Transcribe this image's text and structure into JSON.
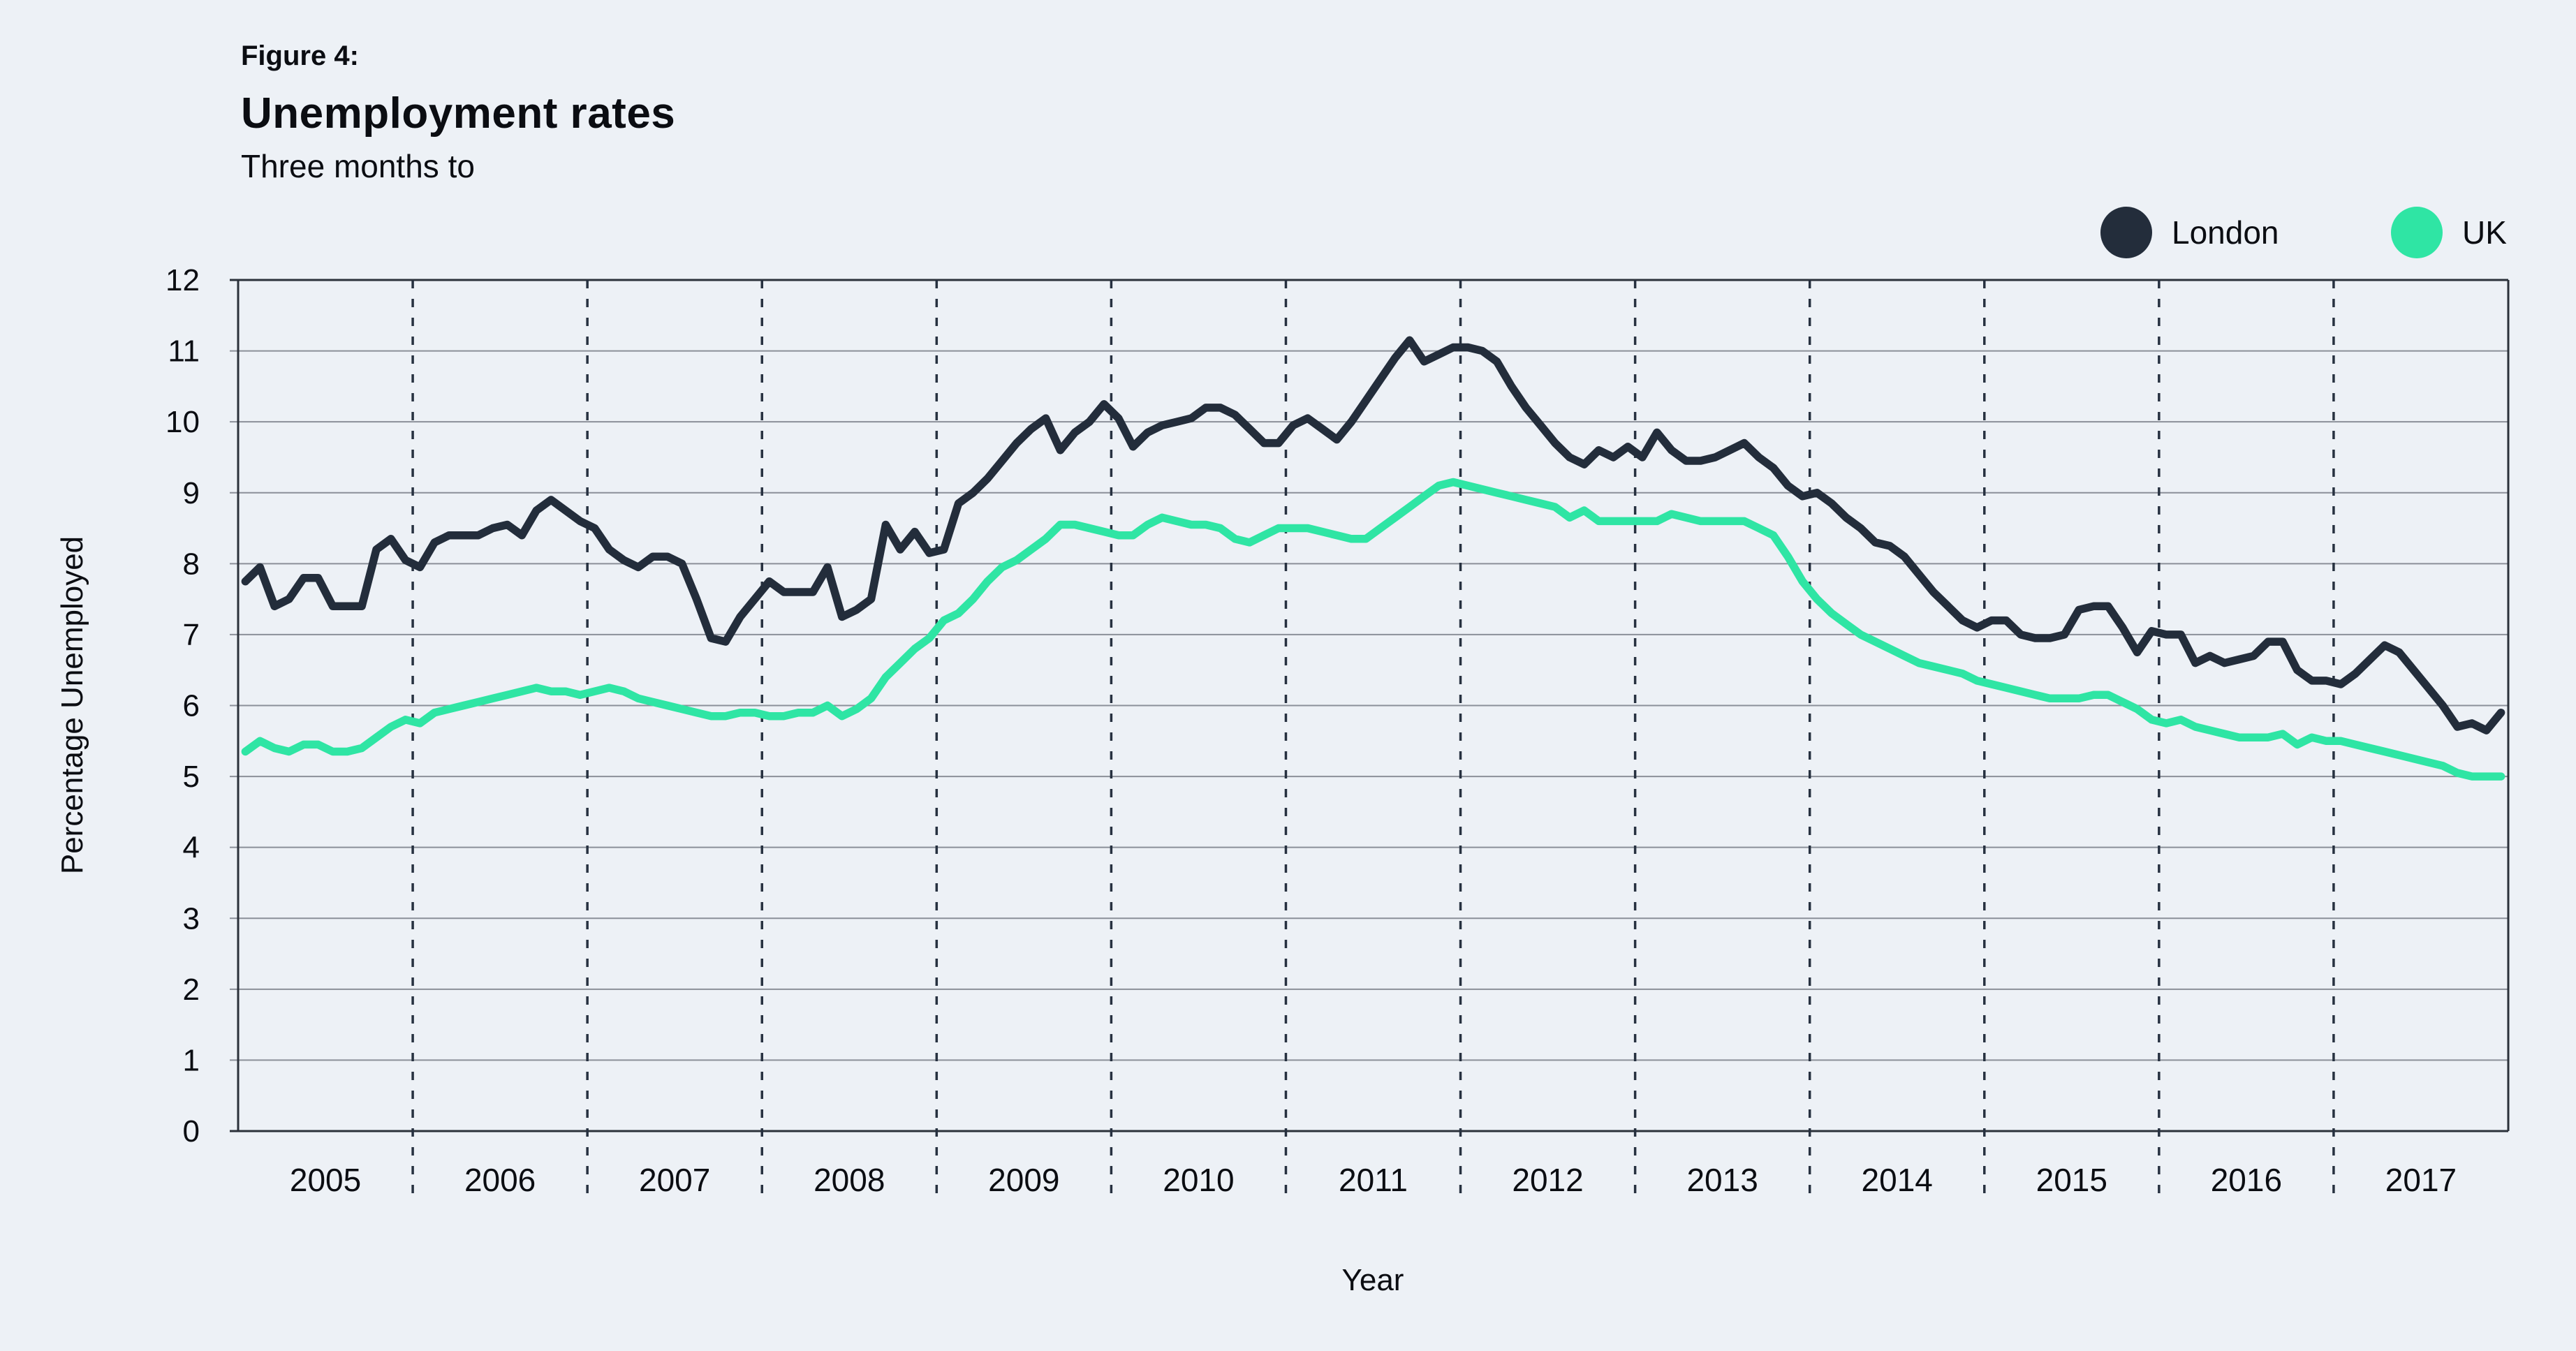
{
  "figure": {
    "label": "Figure 4:",
    "title": "Unemployment rates",
    "subtitle": "Three months to"
  },
  "legend": {
    "items": [
      {
        "label": "London",
        "color": "#232d3b"
      },
      {
        "label": "UK",
        "color": "#2fe5a4"
      }
    ]
  },
  "colors": {
    "background": "#edf1f6",
    "london_line": "#232d3b",
    "uk_line": "#2fe5a4",
    "gridline": "#8b9099",
    "frame": "#2b313a",
    "year_divider": "#273140",
    "text": "#0b0d12"
  },
  "chart_data": {
    "type": "line",
    "title": "Unemployment rates",
    "subtitle": "Three months to",
    "xlabel": "Year",
    "ylabel": "Percentage Unemployed",
    "ylim": [
      0,
      12
    ],
    "y_ticks": [
      0,
      1,
      2,
      3,
      4,
      5,
      6,
      7,
      8,
      9,
      10,
      11,
      12
    ],
    "x_tick_labels": [
      "2005",
      "2006",
      "2007",
      "2008",
      "2009",
      "2010",
      "2011",
      "2012",
      "2013",
      "2014",
      "2015",
      "2016",
      "2017"
    ],
    "x_unit": "monthly, Jan 2005 - Dec 2017",
    "grid": {
      "horizontal": true,
      "vertical_year_dividers": "dashed"
    },
    "legend_position": "top-right",
    "series": [
      {
        "name": "London",
        "color": "#232d3b",
        "values": [
          7.75,
          7.95,
          7.4,
          7.5,
          7.8,
          7.8,
          7.4,
          7.4,
          7.4,
          8.2,
          8.35,
          8.05,
          7.95,
          8.3,
          8.4,
          8.4,
          8.4,
          8.5,
          8.55,
          8.4,
          8.75,
          8.9,
          8.75,
          8.6,
          8.5,
          8.2,
          8.05,
          7.95,
          8.1,
          8.1,
          8.0,
          7.5,
          6.95,
          6.9,
          7.25,
          7.5,
          7.75,
          7.6,
          7.6,
          7.6,
          7.95,
          7.25,
          7.35,
          7.5,
          8.55,
          8.2,
          8.45,
          8.15,
          8.2,
          8.85,
          9.0,
          9.2,
          9.45,
          9.7,
          9.9,
          10.05,
          9.6,
          9.85,
          10.0,
          10.25,
          10.05,
          9.65,
          9.85,
          9.95,
          10.0,
          10.05,
          10.2,
          10.2,
          10.1,
          9.9,
          9.7,
          9.7,
          9.95,
          10.05,
          9.9,
          9.75,
          10.0,
          10.3,
          10.6,
          10.9,
          11.15,
          10.85,
          10.95,
          11.05,
          11.05,
          11.0,
          10.85,
          10.5,
          10.2,
          9.95,
          9.7,
          9.5,
          9.4,
          9.6,
          9.5,
          9.65,
          9.5,
          9.85,
          9.6,
          9.45,
          9.45,
          9.5,
          9.6,
          9.7,
          9.5,
          9.35,
          9.1,
          8.95,
          9.0,
          8.85,
          8.65,
          8.5,
          8.3,
          8.25,
          8.1,
          7.85,
          7.6,
          7.4,
          7.2,
          7.1,
          7.2,
          7.2,
          7.0,
          6.95,
          6.95,
          7.0,
          7.35,
          7.4,
          7.4,
          7.1,
          6.75,
          7.05,
          7.0,
          7.0,
          6.6,
          6.7,
          6.6,
          6.65,
          6.7,
          6.9,
          6.9,
          6.5,
          6.35,
          6.35,
          6.3,
          6.45,
          6.65,
          6.85,
          6.75,
          6.5,
          6.25,
          6.0,
          5.7,
          5.75,
          5.65,
          5.9
        ]
      },
      {
        "name": "UK",
        "color": "#2fe5a4",
        "values": [
          5.35,
          5.5,
          5.4,
          5.35,
          5.45,
          5.45,
          5.35,
          5.35,
          5.4,
          5.55,
          5.7,
          5.8,
          5.75,
          5.9,
          5.95,
          6.0,
          6.05,
          6.1,
          6.15,
          6.2,
          6.25,
          6.2,
          6.2,
          6.15,
          6.2,
          6.25,
          6.2,
          6.1,
          6.05,
          6.0,
          5.95,
          5.9,
          5.85,
          5.85,
          5.9,
          5.9,
          5.85,
          5.85,
          5.9,
          5.9,
          6.0,
          5.85,
          5.95,
          6.1,
          6.4,
          6.6,
          6.8,
          6.95,
          7.2,
          7.3,
          7.5,
          7.75,
          7.95,
          8.05,
          8.2,
          8.35,
          8.55,
          8.55,
          8.5,
          8.45,
          8.4,
          8.4,
          8.55,
          8.65,
          8.6,
          8.55,
          8.55,
          8.5,
          8.35,
          8.3,
          8.4,
          8.5,
          8.5,
          8.5,
          8.45,
          8.4,
          8.35,
          8.35,
          8.5,
          8.65,
          8.8,
          8.95,
          9.1,
          9.15,
          9.1,
          9.05,
          9.0,
          8.95,
          8.9,
          8.85,
          8.8,
          8.65,
          8.75,
          8.6,
          8.6,
          8.6,
          8.6,
          8.6,
          8.7,
          8.65,
          8.6,
          8.6,
          8.6,
          8.6,
          8.5,
          8.4,
          8.1,
          7.75,
          7.5,
          7.3,
          7.15,
          7.0,
          6.9,
          6.8,
          6.7,
          6.6,
          6.55,
          6.5,
          6.45,
          6.35,
          6.3,
          6.25,
          6.2,
          6.15,
          6.1,
          6.1,
          6.1,
          6.15,
          6.15,
          6.05,
          5.95,
          5.8,
          5.75,
          5.8,
          5.7,
          5.65,
          5.6,
          5.55,
          5.55,
          5.55,
          5.6,
          5.45,
          5.55,
          5.5,
          5.5,
          5.45,
          5.4,
          5.35,
          5.3,
          5.25,
          5.2,
          5.15,
          5.05,
          5.0,
          5.0,
          5.0
        ]
      }
    ]
  }
}
